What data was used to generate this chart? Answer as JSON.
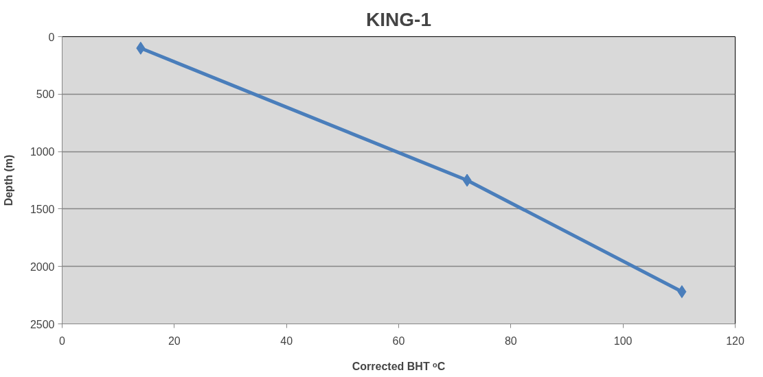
{
  "chart_data": {
    "type": "line",
    "title": "KING-1",
    "xlabel": "Corrected BHT ᵒC",
    "ylabel": "Depth (m)",
    "x": [
      14,
      72.2,
      110.5
    ],
    "series": [
      {
        "color": "#4a7ebb",
        "values": [
          100,
          1250,
          2220
        ]
      }
    ],
    "xlim": [
      0,
      120
    ],
    "xticks": [
      0,
      20,
      40,
      60,
      80,
      100,
      120
    ],
    "ylim": [
      2500,
      0
    ],
    "yticks": [
      0,
      500,
      1000,
      1500,
      2000,
      2500
    ],
    "grid": "y",
    "marker": "diamond",
    "line_style": "solid"
  }
}
